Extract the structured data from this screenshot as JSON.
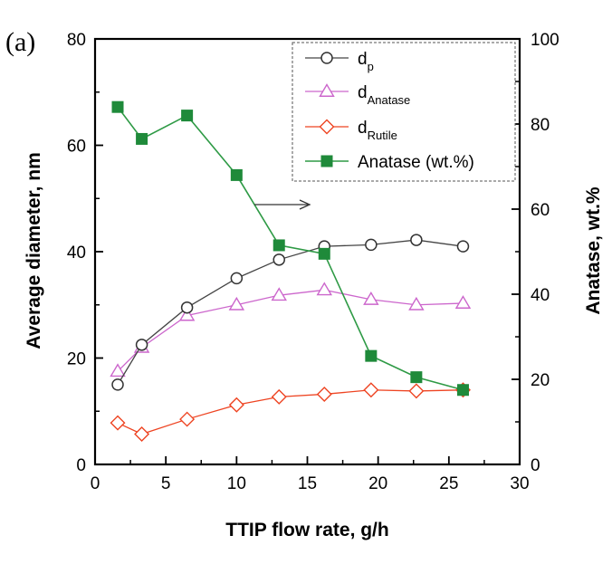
{
  "panel_label": "(a)",
  "colors": {
    "dp": "#444444",
    "anatase_d": "#cc66cc",
    "rutile_d": "#ee4422",
    "anatase_wt": "#2e9a45",
    "anatase_wt_fill": "#1f8a3a",
    "axis": "#000000"
  },
  "chart_data": {
    "type": "line",
    "title": "",
    "xlabel": "TTIP flow rate, g/h",
    "ylabel_left": "Average diameter, nm",
    "ylabel_right": "Anatase, wt.%",
    "xlim": [
      0,
      30
    ],
    "ylim_left": [
      0,
      80
    ],
    "ylim_right": [
      0,
      100
    ],
    "x_ticks": [
      "0",
      "5",
      "10",
      "15",
      "20",
      "25",
      "30"
    ],
    "y_left_ticks": [
      "0",
      "20",
      "40",
      "60",
      "80"
    ],
    "y_right_ticks": [
      "0",
      "20",
      "40",
      "60",
      "80",
      "100"
    ],
    "grid": false,
    "legend_position": "top-right",
    "series": [
      {
        "name": "dp",
        "label_main": "d",
        "label_sub": "p",
        "axis": "left",
        "marker": "open-circle",
        "x": [
          1.6,
          3.3,
          6.5,
          10,
          13,
          16.2,
          19.5,
          22.7,
          26
        ],
        "values": [
          15,
          22.5,
          29.5,
          35,
          38.5,
          41,
          41.3,
          42.2,
          41
        ]
      },
      {
        "name": "dAnatase",
        "label_main": "d",
        "label_sub": "Anatase",
        "axis": "left",
        "marker": "open-triangle",
        "x": [
          1.6,
          3.3,
          6.5,
          10,
          13,
          16.2,
          19.5,
          22.7,
          26
        ],
        "values": [
          17.5,
          22,
          28,
          30,
          31.8,
          32.8,
          31,
          30,
          30.3
        ]
      },
      {
        "name": "dRutile",
        "label_main": "d",
        "label_sub": "Rutile",
        "axis": "left",
        "marker": "open-diamond",
        "x": [
          1.6,
          3.3,
          6.5,
          10,
          13,
          16.2,
          19.5,
          22.7,
          26
        ],
        "values": [
          7.8,
          5.7,
          8.5,
          11.2,
          12.7,
          13.2,
          14,
          13.8,
          14
        ]
      },
      {
        "name": "Anatase (wt.%)",
        "label_main": "Anatase (wt.%)",
        "label_sub": "",
        "axis": "right",
        "marker": "filled-square",
        "x": [
          1.6,
          3.3,
          6.5,
          10,
          13,
          16.2,
          19.5,
          22.7,
          26
        ],
        "values": [
          84,
          76.5,
          82,
          68,
          51.5,
          49.5,
          25.5,
          20.5,
          17.5
        ]
      }
    ],
    "annotations": [
      {
        "type": "arrow",
        "direction": "right",
        "text": "",
        "points_to": "right-axis"
      }
    ]
  }
}
